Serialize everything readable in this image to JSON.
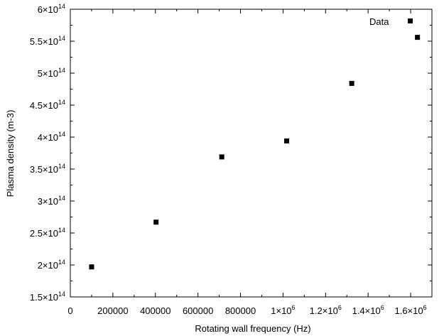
{
  "chart_data": {
    "type": "scatter",
    "xlabel": "Rotating wall frequency (Hz)",
    "ylabel": "Plasma density (m-3)",
    "xlim": [
      0,
      1700000
    ],
    "ylim": [
      150000000000000.0,
      600000000000000.0
    ],
    "grid": false,
    "legend_position": "top-right",
    "x_ticks": [
      {
        "value": 0,
        "mant": "0",
        "exp": ""
      },
      {
        "value": 200000,
        "mant": "200000",
        "exp": ""
      },
      {
        "value": 400000,
        "mant": "400000",
        "exp": ""
      },
      {
        "value": 600000,
        "mant": "600000",
        "exp": ""
      },
      {
        "value": 800000,
        "mant": "800000",
        "exp": ""
      },
      {
        "value": 1000000,
        "mant": "1×10",
        "exp": "6"
      },
      {
        "value": 1200000,
        "mant": "1.2×10",
        "exp": "6"
      },
      {
        "value": 1400000,
        "mant": "1.4×10",
        "exp": "6"
      },
      {
        "value": 1600000,
        "mant": "1.6×10",
        "exp": "6"
      }
    ],
    "y_ticks": [
      {
        "value": 150000000000000.0,
        "mant": "1.5×10",
        "exp": "14"
      },
      {
        "value": 200000000000000.0,
        "mant": "2×10",
        "exp": "14"
      },
      {
        "value": 250000000000000.0,
        "mant": "2.5×10",
        "exp": "14"
      },
      {
        "value": 300000000000000.0,
        "mant": "3×10",
        "exp": "14"
      },
      {
        "value": 350000000000000.0,
        "mant": "3.5×10",
        "exp": "14"
      },
      {
        "value": 400000000000000.0,
        "mant": "4×10",
        "exp": "14"
      },
      {
        "value": 450000000000000.0,
        "mant": "4.5×10",
        "exp": "14"
      },
      {
        "value": 500000000000000.0,
        "mant": "5×10",
        "exp": "14"
      },
      {
        "value": 550000000000000.0,
        "mant": "5.5×10",
        "exp": "14"
      },
      {
        "value": 600000000000000.0,
        "mant": "6×10",
        "exp": "14"
      }
    ],
    "series": [
      {
        "name": "Data",
        "color": "#000000",
        "marker": "square",
        "x": [
          100000,
          403000,
          712000,
          1017000,
          1323000,
          1632000
        ],
        "y": [
          197000000000000.0,
          267000000000000.0,
          369000000000000.0,
          394000000000000.0,
          484000000000000.0,
          556000000000000.0
        ]
      }
    ]
  }
}
